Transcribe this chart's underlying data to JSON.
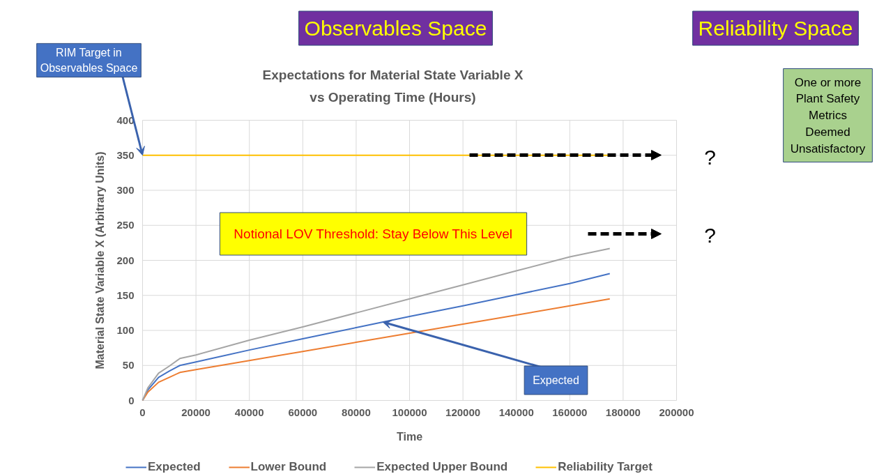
{
  "chart_data": {
    "type": "line",
    "title": "Expectations for Material State Variable X\nvs Operating Time (Hours)",
    "xlabel": "Time",
    "ylabel": "Material State Variable X (Arbitrary Units)",
    "xlim": [
      0,
      200000
    ],
    "xticks": [
      0,
      20000,
      40000,
      60000,
      80000,
      100000,
      120000,
      140000,
      160000,
      180000,
      200000
    ],
    "ylim": [
      0,
      400
    ],
    "yticks": [
      0,
      50,
      100,
      150,
      200,
      250,
      300,
      350,
      400
    ],
    "grid": true,
    "legend": "bottom",
    "line_style": "solid",
    "series": [
      {
        "name": "Expected",
        "color": "#4472c4",
        "x": [
          0,
          2000,
          6000,
          10000,
          14000,
          20000,
          40000,
          60000,
          80000,
          100000,
          120000,
          140000,
          160000,
          175000
        ],
        "values": [
          0,
          15,
          33,
          42,
          50,
          55,
          72,
          88,
          104,
          120,
          135,
          151,
          167,
          181
        ]
      },
      {
        "name": "Lower Bound",
        "color": "#ed7d31",
        "x": [
          0,
          2000,
          6000,
          10000,
          14000,
          20000,
          40000,
          60000,
          80000,
          100000,
          120000,
          140000,
          160000,
          175000
        ],
        "values": [
          0,
          12,
          26,
          33,
          40,
          44,
          57,
          70,
          83,
          96,
          109,
          122,
          135,
          145
        ]
      },
      {
        "name": "Expected Upper Bound",
        "color": "#a5a5a5",
        "x": [
          0,
          2000,
          6000,
          10000,
          14000,
          20000,
          40000,
          60000,
          80000,
          100000,
          120000,
          140000,
          160000,
          175000
        ],
        "values": [
          0,
          18,
          39,
          49,
          60,
          65,
          86,
          105,
          125,
          145,
          165,
          185,
          205,
          217
        ]
      },
      {
        "name": "Reliability Target",
        "color": "#ffc000",
        "x": [
          0,
          175000
        ],
        "values": [
          350,
          350
        ]
      }
    ],
    "annotations": [
      "Observables Space",
      "Reliability Space",
      {
        "text": "RIM Target in\nObservables Space",
        "x": 0,
        "y": 350
      },
      "Notional LOV Threshold: Stay Below This Level",
      {
        "text": "Expected",
        "x": 90000,
        "y": 112
      },
      "?",
      "?",
      "One or more\nPlant Safety\nMetrics\nDeemed\nUnsatisfactory"
    ]
  }
}
